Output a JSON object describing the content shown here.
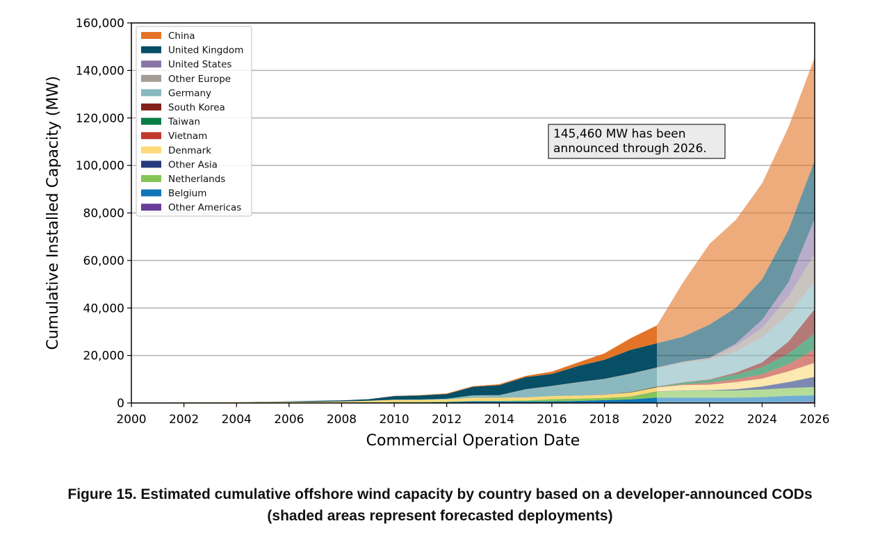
{
  "chart_data": {
    "type": "area",
    "stacked": true,
    "title": "",
    "xlabel": "Commercial Operation Date",
    "ylabel": "Cumulative Installed Capacity (MW)",
    "xlim": [
      2000,
      2026
    ],
    "ylim": [
      0,
      160000
    ],
    "grid": "horizontal",
    "legend_placement": "top-left",
    "forecast_start": 2020,
    "xticks": [
      2000,
      2002,
      2004,
      2006,
      2008,
      2010,
      2012,
      2014,
      2016,
      2018,
      2020,
      2022,
      2024,
      2026
    ],
    "xtick_labels": [
      "2000",
      "2002",
      "2004",
      "2006",
      "2008",
      "2010",
      "2012",
      "2014",
      "2016",
      "2018",
      "2020",
      "2022",
      "2024",
      "2026"
    ],
    "yticks": [
      0,
      20000,
      40000,
      60000,
      80000,
      100000,
      120000,
      140000,
      160000
    ],
    "ytick_labels": [
      "0",
      "20,000",
      "40,000",
      "60,000",
      "80,000",
      "100,000",
      "120,000",
      "140,000",
      "160,000"
    ],
    "x": [
      2000,
      2001,
      2002,
      2003,
      2004,
      2005,
      2006,
      2007,
      2008,
      2009,
      2010,
      2011,
      2012,
      2013,
      2014,
      2015,
      2016,
      2017,
      2018,
      2019,
      2020,
      2021,
      2022,
      2023,
      2024,
      2025,
      2026
    ],
    "series": [
      {
        "name": "Other Americas",
        "color": "#6a3d9a",
        "values": [
          0,
          0,
          0,
          0,
          0,
          0,
          0,
          0,
          0,
          0,
          0,
          0,
          0,
          0,
          0,
          0,
          0,
          0,
          0,
          0,
          0,
          0,
          0,
          0,
          200,
          400,
          600
        ]
      },
      {
        "name": "Belgium",
        "color": "#1175b8",
        "values": [
          0,
          0,
          0,
          0,
          0,
          0,
          0,
          0,
          0,
          30,
          200,
          200,
          380,
          700,
          700,
          700,
          700,
          880,
          1200,
          1550,
          2260,
          2260,
          2260,
          2260,
          2260,
          2600,
          2600
        ]
      },
      {
        "name": "Netherlands",
        "color": "#84c655",
        "values": [
          0,
          0,
          0,
          0,
          0,
          0,
          100,
          100,
          230,
          230,
          230,
          230,
          230,
          230,
          230,
          360,
          950,
          950,
          950,
          1100,
          2500,
          2900,
          3000,
          3000,
          3200,
          3300,
          3500
        ]
      },
      {
        "name": "Other Asia",
        "color": "#253a7d",
        "values": [
          0,
          0,
          0,
          0,
          0,
          0,
          0,
          0,
          0,
          0,
          0,
          0,
          0,
          0,
          0,
          0,
          0,
          0,
          0,
          50,
          100,
          100,
          150,
          500,
          1300,
          2500,
          4300
        ]
      },
      {
        "name": "Denmark",
        "color": "#fcd97a",
        "values": [
          50,
          100,
          250,
          300,
          400,
          420,
          420,
          420,
          420,
          640,
          850,
          850,
          870,
          1270,
          1270,
          1270,
          1270,
          1290,
          1330,
          1700,
          1700,
          2300,
          2300,
          3000,
          3300,
          4500,
          5900
        ]
      },
      {
        "name": "Vietnam",
        "color": "#c0392b",
        "values": [
          0,
          0,
          0,
          0,
          0,
          0,
          0,
          0,
          0,
          0,
          0,
          0,
          0,
          0,
          0,
          0,
          0,
          0,
          0,
          0,
          100,
          300,
          800,
          1200,
          1800,
          3000,
          5600
        ]
      },
      {
        "name": "Taiwan",
        "color": "#0a7d45",
        "values": [
          0,
          0,
          0,
          0,
          0,
          0,
          0,
          0,
          0,
          0,
          0,
          0,
          0,
          0,
          0,
          0,
          0,
          0,
          0,
          130,
          130,
          700,
          1200,
          2000,
          3000,
          4500,
          6700
        ]
      },
      {
        "name": "South Korea",
        "color": "#82211c",
        "values": [
          0,
          0,
          0,
          0,
          0,
          0,
          0,
          0,
          0,
          0,
          0,
          0,
          0,
          0,
          0,
          0,
          0,
          40,
          70,
          120,
          140,
          150,
          200,
          800,
          2000,
          5000,
          10300
        ]
      },
      {
        "name": "Germany",
        "color": "#89b9bf",
        "values": [
          0,
          0,
          0,
          0,
          0,
          0,
          0,
          0,
          0,
          60,
          100,
          200,
          300,
          900,
          1000,
          3300,
          4100,
          5400,
          6400,
          7500,
          7700,
          8200,
          8300,
          8800,
          10500,
          11500,
          11600
        ]
      },
      {
        "name": "Other Europe",
        "color": "#a59d94",
        "values": [
          0,
          0,
          0,
          0,
          0,
          0,
          0,
          0,
          0,
          0,
          0,
          0,
          0,
          100,
          100,
          150,
          150,
          200,
          200,
          200,
          300,
          500,
          700,
          2500,
          4000,
          7500,
          11700
        ]
      },
      {
        "name": "United States",
        "color": "#8a76a6",
        "values": [
          0,
          0,
          0,
          0,
          0,
          0,
          0,
          0,
          0,
          0,
          0,
          0,
          0,
          0,
          0,
          0,
          30,
          30,
          30,
          30,
          40,
          40,
          100,
          1000,
          3500,
          6000,
          14700
        ]
      },
      {
        "name": "United Kingdom",
        "color": "#064f66",
        "values": [
          0,
          0,
          0,
          0,
          0,
          80,
          180,
          380,
          450,
          620,
          1500,
          1700,
          2000,
          3600,
          4200,
          5100,
          5000,
          6800,
          8000,
          10000,
          10200,
          10500,
          14000,
          15000,
          17000,
          22000,
          24500
        ]
      },
      {
        "name": "China",
        "color": "#e37427",
        "values": [
          0,
          0,
          0,
          0,
          0,
          0,
          0,
          0,
          0,
          0,
          100,
          150,
          250,
          300,
          400,
          500,
          1000,
          1500,
          2700,
          4900,
          7500,
          23000,
          34000,
          37000,
          40400,
          43200,
          43460
        ]
      }
    ],
    "annotations": [
      {
        "lines": [
          "145,460 MW has been",
          "announced through 2026."
        ],
        "x": 2019,
        "y": 110000
      }
    ]
  },
  "caption": {
    "line1": "Figure 15. Estimated cumulative offshore wind capacity by country based on a developer-announced CODs",
    "line2": "(shaded areas represent forecasted deployments)"
  }
}
